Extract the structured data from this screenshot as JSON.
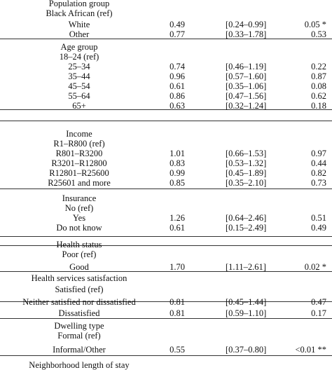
{
  "rows": [
    {
      "label": "Population group",
      "or": "",
      "ci": "",
      "p": ""
    },
    {
      "label": "Black African (ref)",
      "or": "",
      "ci": "",
      "p": ""
    },
    {
      "label": "White",
      "or": "0.49",
      "ci": "[0.24–0.99]",
      "p": "0.05 *"
    },
    {
      "label": "Other",
      "or": "0.77",
      "ci": "[0.33–1.78]",
      "p": "0.53"
    },
    {
      "label": "Age group",
      "or": "",
      "ci": "",
      "p": ""
    },
    {
      "label": "18–24 (ref)",
      "or": "",
      "ci": "",
      "p": ""
    },
    {
      "label": "25–34",
      "or": "0.74",
      "ci": "[0.46–1.19]",
      "p": "0.22"
    },
    {
      "label": "35–44",
      "or": "0.96",
      "ci": "[0.57–1.60]",
      "p": "0.87"
    },
    {
      "label": "45–54",
      "or": "0.61",
      "ci": "[0.35–1.06]",
      "p": "0.08"
    },
    {
      "label": "55–64",
      "or": "0.86",
      "ci": "[0.47–1.56]",
      "p": "0.62"
    },
    {
      "label": "65+",
      "or": "0.63",
      "ci": "[0.32–1.24]",
      "p": "0.18"
    },
    {
      "label": "Income",
      "or": "",
      "ci": "",
      "p": ""
    },
    {
      "label": "R1–R800 (ref)",
      "or": "",
      "ci": "",
      "p": ""
    },
    {
      "label": "R801–R3200",
      "or": "1.01",
      "ci": "[0.66–1.53]",
      "p": "0.97"
    },
    {
      "label": "R3201–R12800",
      "or": "0.83",
      "ci": "[0.53–1.32]",
      "p": "0.44"
    },
    {
      "label": "R12801–R25600",
      "or": "0.99",
      "ci": "[0.45–1.89]",
      "p": "0.82"
    },
    {
      "label": "R25601 and more",
      "or": "0.85",
      "ci": "[0.35–2.10]",
      "p": "0.73"
    },
    {
      "label": "Insurance",
      "or": "",
      "ci": "",
      "p": ""
    },
    {
      "label": "No (ref)",
      "or": "",
      "ci": "",
      "p": ""
    },
    {
      "label": "Yes",
      "or": "1.26",
      "ci": "[0.64–2.46]",
      "p": "0.51"
    },
    {
      "label": "Do not know",
      "or": "0.61",
      "ci": "[0.15–2.49]",
      "p": "0.49"
    },
    {
      "label": "Health status",
      "or": "",
      "ci": "",
      "p": ""
    },
    {
      "label": "Poor (ref)",
      "or": "",
      "ci": "",
      "p": ""
    },
    {
      "label": "Good",
      "or": "1.70",
      "ci": "[1.11–2.61]",
      "p": "0.02 *"
    },
    {
      "label": "Health services satisfaction",
      "or": "",
      "ci": "",
      "p": ""
    },
    {
      "label": "Satisfied (ref)",
      "or": "",
      "ci": "",
      "p": ""
    },
    {
      "label": "Neither satisfied nor dissatisfied",
      "or": "0.81",
      "ci": "[0.45–1.44]",
      "p": "0.47"
    },
    {
      "label": "Dissatisfied",
      "or": "0.81",
      "ci": "[0.59–1.10]",
      "p": "0.17"
    },
    {
      "label": "Dwelling type",
      "or": "",
      "ci": "",
      "p": ""
    },
    {
      "label": "Formal (ref)",
      "or": "",
      "ci": "",
      "p": ""
    },
    {
      "label": "Informal/Other",
      "or": "0.55",
      "ci": "[0.37–0.80]",
      "p": "<0.01 **"
    },
    {
      "label": "Neighborhood length of stay",
      "or": "",
      "ci": "",
      "p": ""
    }
  ]
}
